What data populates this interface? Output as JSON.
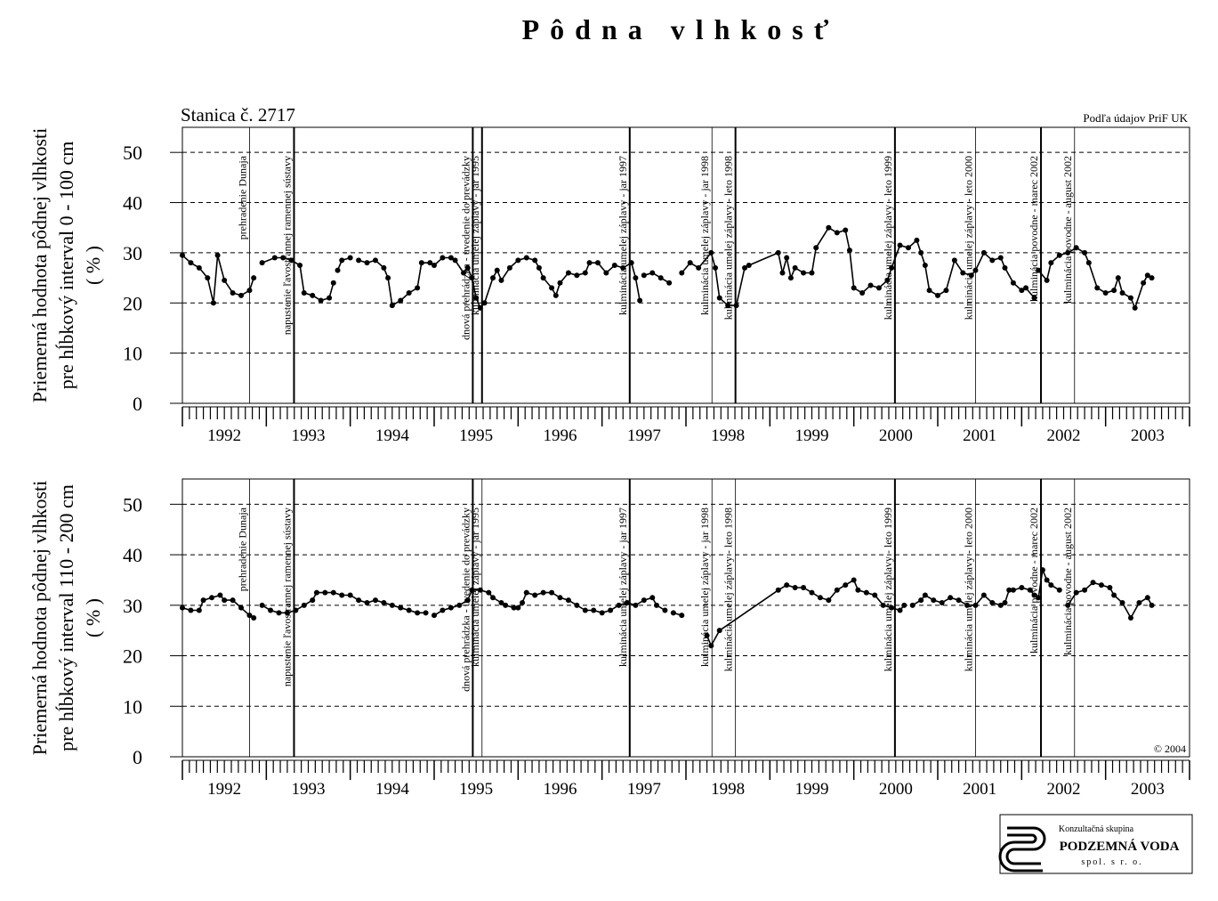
{
  "title": "Pôdna vlhkosť",
  "station": "Stanica č. 2717",
  "source": "Podľa údajov PriF UK",
  "copyright": "© 2004",
  "logo": {
    "line1": "Konzultačná skupina",
    "line2": "PODZEMNÁ VODA",
    "line3": "spol. s r. o."
  },
  "chart_data": [
    {
      "type": "line",
      "ylabel": [
        "Priemerná hodnota pôdnej vlhkosti",
        "pre hĺbkový interval 0 - 100 cm",
        "( % )"
      ],
      "xlim": [
        1992,
        2004
      ],
      "ylim": [
        0,
        55
      ],
      "yticks": [
        0,
        10,
        20,
        30,
        40,
        50
      ],
      "grid": true,
      "xticks": [
        {
          "value": 1992.5,
          "label": "1992"
        },
        {
          "value": 1993.5,
          "label": "1993"
        },
        {
          "value": 1994.5,
          "label": "1994"
        },
        {
          "value": 1995.5,
          "label": "1995"
        },
        {
          "value": 1996.5,
          "label": "1996"
        },
        {
          "value": 1997.5,
          "label": "1997"
        },
        {
          "value": 1998.5,
          "label": "1998"
        },
        {
          "value": 1999.5,
          "label": "1999"
        },
        {
          "value": 2000.5,
          "label": "2000"
        },
        {
          "value": 2001.5,
          "label": "2001"
        },
        {
          "value": 2002.5,
          "label": "2002"
        },
        {
          "value": 2003.5,
          "label": "2003"
        }
      ],
      "events": [
        {
          "x": 1992.8,
          "style": "thin",
          "label": "prehradenie Dunaja"
        },
        {
          "x": 1993.33,
          "style": "thick",
          "label": "napustenie ľavostrannej ramennej sústavy"
        },
        {
          "x": 1995.46,
          "style": "thick",
          "label": "dnová prehrádzka - uvedenie do prevádzky"
        },
        {
          "x": 1995.57,
          "style": "thick",
          "label": "kulminácia umelej záplavy - jar 1995"
        },
        {
          "x": 1997.33,
          "style": "thick",
          "label": "kulminácia umelej záplavy - jar 1997"
        },
        {
          "x": 1998.31,
          "style": "thin",
          "label": "kulminácia umelej záplavy - jar 1998"
        },
        {
          "x": 1998.59,
          "style": "thick",
          "label": "kulminácia umelej záplavy - leto 1998"
        },
        {
          "x": 2000.49,
          "style": "thick",
          "label": "kulminácia umelej záplavy - leto 1999"
        },
        {
          "x": 2001.45,
          "style": "thin",
          "label": "kulminácia umelej záplavy - leto 2000"
        },
        {
          "x": 2002.23,
          "style": "thick",
          "label": "kulminácia povodne - marec 2002"
        },
        {
          "x": 2002.63,
          "style": "thin",
          "label": "kulminácia povodne - august 2002"
        }
      ],
      "series": [
        {
          "color": "#000000",
          "x": [
            1992.0,
            1992.1,
            1992.2,
            1992.3,
            1992.37,
            1992.42,
            1992.5,
            1992.6,
            1992.7,
            1992.8,
            1992.85,
            null,
            1992.95,
            1993.1,
            1993.2,
            1993.3,
            1993.4,
            1993.45,
            1993.55,
            1993.65,
            1993.75,
            1993.8,
            null,
            1993.85,
            1993.9,
            1994.0,
            null,
            1994.1,
            1994.2,
            1994.3,
            1994.4,
            1994.45,
            1994.5,
            1994.6,
            1994.7,
            1994.8,
            1994.85,
            1994.95,
            1995.0,
            1995.1,
            1995.2,
            1995.25,
            1995.35,
            1995.4,
            1995.45,
            1995.5,
            1995.55,
            1995.6,
            1995.7,
            1995.75,
            1995.8,
            1995.9,
            1996.0,
            1996.1,
            1996.2,
            1996.25,
            1996.3,
            1996.4,
            1996.45,
            1996.5,
            1996.6,
            1996.7,
            1996.8,
            1996.85,
            1996.95,
            1997.05,
            1997.15,
            1997.25,
            1997.35,
            1997.4,
            1997.45,
            null,
            1997.5,
            1997.6,
            1997.7,
            1997.8,
            null,
            1997.95,
            1998.05,
            1998.15,
            1998.3,
            1998.35,
            1998.4,
            1998.5,
            1998.6,
            1998.7,
            1998.75,
            1999.1,
            1999.15,
            1999.2,
            1999.25,
            1999.3,
            1999.4,
            1999.5,
            1999.55,
            1999.7,
            1999.8,
            1999.9,
            1999.95,
            2000.0,
            2000.1,
            2000.2,
            2000.3,
            2000.4,
            2000.45,
            2000.55,
            2000.65,
            2000.75,
            2000.8,
            2000.85,
            2000.9,
            2001.0,
            2001.1,
            2001.2,
            2001.3,
            2001.4,
            2001.45,
            2001.55,
            2001.65,
            2001.75,
            2001.8,
            2001.9,
            2002.0,
            2002.05,
            2002.15,
            null,
            2002.2,
            2002.3,
            2002.35,
            2002.45,
            2002.55,
            2002.65,
            2002.75,
            2002.8,
            2002.9,
            2003.0,
            2003.1,
            2003.15,
            2003.2,
            2003.3,
            2003.35,
            2003.45,
            2003.5,
            2003.55
          ],
          "values": [
            29.5,
            28,
            27,
            25,
            20,
            29.5,
            24.5,
            22,
            21.5,
            22.5,
            25,
            null,
            28,
            29,
            29,
            28.5,
            27.5,
            22,
            21.5,
            20.5,
            21,
            24,
            null,
            26.5,
            28.5,
            29,
            null,
            28.5,
            28,
            28.5,
            27,
            25,
            19.5,
            20.5,
            22,
            23,
            28,
            28,
            27.5,
            29,
            29,
            28.5,
            26,
            27,
            25,
            21,
            19,
            20,
            25,
            26.5,
            24.5,
            27,
            28.5,
            29,
            28.5,
            27,
            25,
            23,
            21.5,
            24,
            26,
            25.5,
            26,
            28,
            28,
            26,
            27.5,
            27,
            28,
            25,
            20.5,
            null,
            25.5,
            26,
            25,
            24,
            null,
            26,
            28,
            27,
            30,
            27,
            21,
            19.5,
            19.5,
            27,
            27.5,
            30,
            26,
            29,
            25,
            27,
            26,
            26,
            31,
            35,
            34,
            34.5,
            30.5,
            23,
            22,
            23.5,
            23,
            24.5,
            27,
            31.5,
            31,
            32.5,
            30,
            27.5,
            22.5,
            21.5,
            22.5,
            28.5,
            26,
            25.5,
            26.5,
            30,
            28.5,
            29,
            27,
            24,
            22.5,
            23,
            21,
            null,
            26.5,
            24.5,
            28,
            29.5,
            30,
            31,
            30,
            28,
            23,
            22,
            22.5,
            25,
            22,
            21,
            19,
            24,
            25.5,
            25
          ]
        }
      ]
    },
    {
      "type": "line",
      "ylabel": [
        "Priemerná hodnota pôdnej vlhkosti",
        "pre hĺbkový interval 110 - 200 cm",
        "( % )"
      ],
      "xlim": [
        1992,
        2004
      ],
      "ylim": [
        0,
        55
      ],
      "yticks": [
        0,
        10,
        20,
        30,
        40,
        50
      ],
      "grid": true,
      "xticks": [
        {
          "value": 1992.5,
          "label": "1992"
        },
        {
          "value": 1993.5,
          "label": "1993"
        },
        {
          "value": 1994.5,
          "label": "1994"
        },
        {
          "value": 1995.5,
          "label": "1995"
        },
        {
          "value": 1996.5,
          "label": "1996"
        },
        {
          "value": 1997.5,
          "label": "1997"
        },
        {
          "value": 1998.5,
          "label": "1998"
        },
        {
          "value": 1999.5,
          "label": "1999"
        },
        {
          "value": 2000.5,
          "label": "2000"
        },
        {
          "value": 2001.5,
          "label": "2001"
        },
        {
          "value": 2002.5,
          "label": "2002"
        },
        {
          "value": 2003.5,
          "label": "2003"
        }
      ],
      "events": [
        {
          "x": 1992.8,
          "style": "thin",
          "label": "prehradenie Dunaja"
        },
        {
          "x": 1993.33,
          "style": "thick",
          "label": "napustenie ľavostrannej ramennej sústavy"
        },
        {
          "x": 1995.46,
          "style": "thick",
          "label": "dnová prehrádzka - uvedenie do prevádzky"
        },
        {
          "x": 1995.57,
          "style": "thin",
          "label": "kulminácia umelej záplavy - jar 1995"
        },
        {
          "x": 1997.33,
          "style": "thick",
          "label": "kulminácia umelej záplavy - jar 1997"
        },
        {
          "x": 1998.31,
          "style": "thin",
          "label": "kulminácia umelej záplavy - jar 1998"
        },
        {
          "x": 1998.59,
          "style": "thin",
          "label": "kulminácia umelej záplavy - leto 1998"
        },
        {
          "x": 2000.49,
          "style": "thick",
          "label": "kulminácia umelej záplavy - leto 1999"
        },
        {
          "x": 2001.45,
          "style": "thin",
          "label": "kulminácia umelej záplavy - leto 2000"
        },
        {
          "x": 2002.23,
          "style": "thick",
          "label": "kulminácia povodne - marec 2002"
        },
        {
          "x": 2002.63,
          "style": "thin",
          "label": "kulminácia povodne - august 2002"
        }
      ],
      "series": [
        {
          "color": "#000000",
          "x": [
            1992.0,
            1992.1,
            1992.2,
            1992.25,
            1992.35,
            1992.45,
            1992.5,
            1992.6,
            1992.7,
            1992.8,
            1992.85,
            null,
            1992.95,
            1993.05,
            1993.15,
            1993.25,
            1993.35,
            1993.45,
            1993.55,
            1993.6,
            1993.7,
            1993.8,
            1993.9,
            1994.0,
            1994.1,
            1994.2,
            1994.3,
            1994.4,
            1994.5,
            1994.6,
            1994.7,
            1994.8,
            1994.9,
            null,
            1995.0,
            1995.1,
            1995.2,
            1995.3,
            1995.4,
            1995.45,
            1995.55,
            1995.65,
            1995.7,
            1995.8,
            1995.85,
            1995.95,
            1996.0,
            1996.05,
            1996.1,
            1996.2,
            1996.3,
            1996.4,
            1996.5,
            1996.6,
            1996.7,
            1996.8,
            1996.9,
            1997.0,
            1997.1,
            1997.2,
            1997.3,
            1997.4,
            1997.5,
            1997.6,
            1997.65,
            1997.75,
            null,
            1997.85,
            1997.95,
            null,
            1998.25,
            1998.3,
            1998.4,
            1999.1,
            1999.2,
            1999.3,
            1999.4,
            1999.5,
            1999.6,
            1999.7,
            1999.8,
            1999.9,
            2000.0,
            2000.05,
            2000.15,
            2000.25,
            2000.35,
            2000.45,
            2000.55,
            2000.6,
            null,
            2000.7,
            2000.8,
            2000.85,
            2000.95,
            2001.05,
            2001.15,
            2001.25,
            2001.35,
            2001.45,
            2001.55,
            2001.65,
            2001.75,
            2001.8,
            2001.85,
            2001.9,
            2002.0,
            2002.1,
            2002.15,
            2002.2,
            2002.25,
            2002.3,
            2002.35,
            2002.45,
            null,
            2002.55,
            2002.65,
            2002.75,
            2002.85,
            2002.95,
            2003.05,
            2003.1,
            2003.2,
            2003.3,
            2003.4,
            2003.5,
            2003.55
          ],
          "values": [
            29.5,
            29,
            29,
            31,
            31.5,
            32,
            31,
            31,
            29.5,
            28,
            27.5,
            null,
            30,
            29,
            28.5,
            28.5,
            29,
            30,
            31,
            32.5,
            32.5,
            32.5,
            32,
            32,
            31,
            30.5,
            31,
            30.5,
            30,
            29.5,
            29,
            28.5,
            28.5,
            null,
            28,
            29,
            29.5,
            30,
            31,
            33,
            33,
            32.5,
            31.5,
            30.5,
            30,
            29.5,
            29.5,
            30.5,
            32.5,
            32,
            32.5,
            32.5,
            31.5,
            31,
            30,
            29,
            29,
            28.5,
            29,
            30,
            30.5,
            30,
            31,
            31.5,
            30,
            29,
            null,
            28.5,
            28,
            null,
            24,
            22,
            25,
            33,
            34,
            33.5,
            33.5,
            32.5,
            31.5,
            31,
            33,
            34,
            35,
            33,
            32.5,
            32,
            30,
            29.5,
            29,
            30,
            null,
            30,
            31,
            32,
            31,
            30.5,
            31.5,
            31,
            30,
            30,
            32,
            30.5,
            30,
            30.5,
            33,
            33,
            33.5,
            33,
            32,
            31.5,
            37,
            35,
            34,
            33,
            null,
            30,
            32.5,
            33,
            34.5,
            34,
            33.5,
            32,
            30.5,
            27.5,
            30.5,
            31.5,
            30
          ]
        }
      ]
    }
  ]
}
